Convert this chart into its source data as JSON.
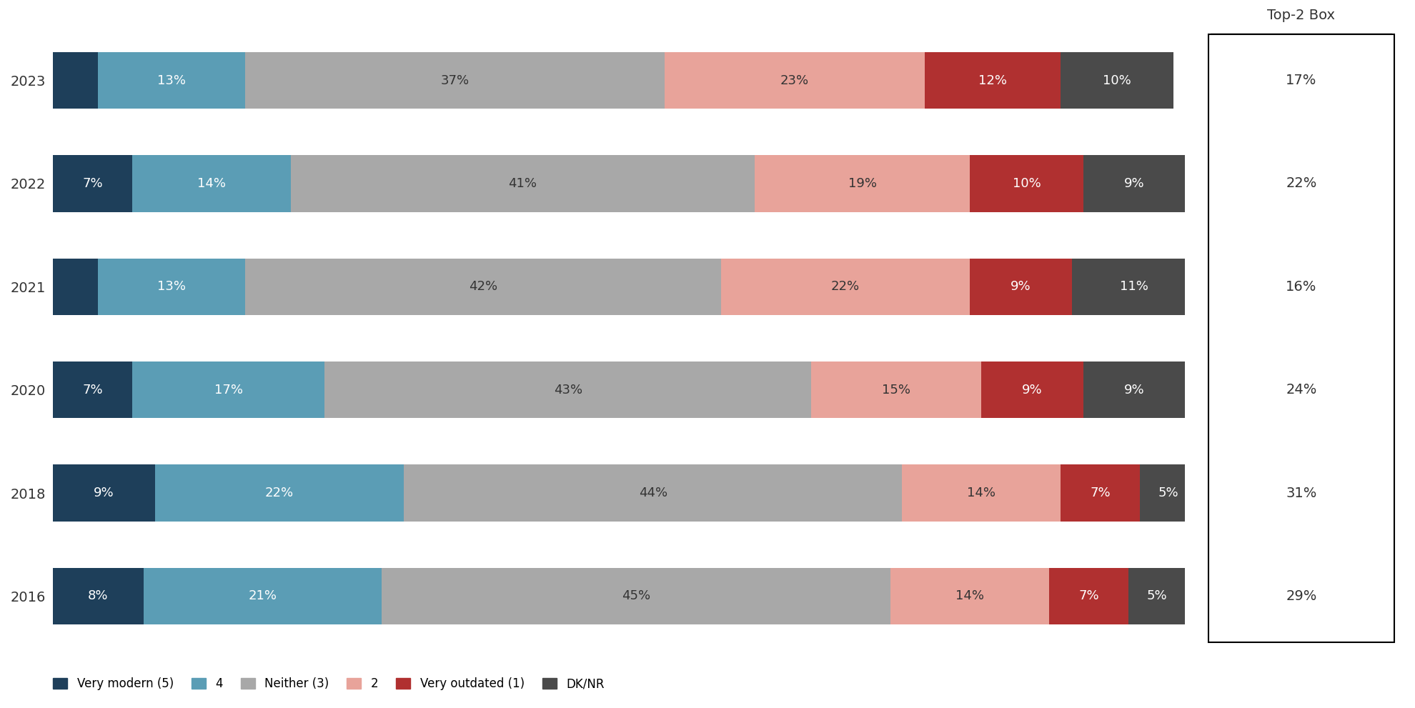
{
  "years": [
    "2023",
    "2022",
    "2021",
    "2020",
    "2018",
    "2016"
  ],
  "segments": {
    "Very modern (5)": [
      4,
      7,
      4,
      7,
      9,
      8
    ],
    "4": [
      13,
      14,
      13,
      17,
      22,
      21
    ],
    "Neither (3)": [
      37,
      41,
      42,
      43,
      44,
      45
    ],
    "2": [
      23,
      19,
      22,
      15,
      14,
      14
    ],
    "Very outdated (1)": [
      12,
      10,
      9,
      9,
      7,
      7
    ],
    "DK/NR": [
      10,
      9,
      11,
      9,
      5,
      5
    ]
  },
  "colors": {
    "Very modern (5)": "#1e3f5a",
    "4": "#5b9db5",
    "Neither (3)": "#a8a8a8",
    "2": "#e8a39a",
    "Very outdated (1)": "#b03030",
    "DK/NR": "#4a4a4a"
  },
  "top2box": [
    "17%",
    "22%",
    "16%",
    "24%",
    "31%",
    "29%"
  ],
  "top2box_label": "Top-2 Box",
  "legend_order": [
    "Very modern (5)",
    "4",
    "Neither (3)",
    "2",
    "Very outdated (1)",
    "DK/NR"
  ],
  "bar_height": 0.55,
  "figsize": [
    19.8,
    9.91
  ],
  "dpi": 100,
  "text_color_light": "#ffffff",
  "text_color_dark": "#333333",
  "font_size_bar": 13,
  "font_size_ytick": 14,
  "font_size_legend": 12,
  "font_size_top2box": 14
}
